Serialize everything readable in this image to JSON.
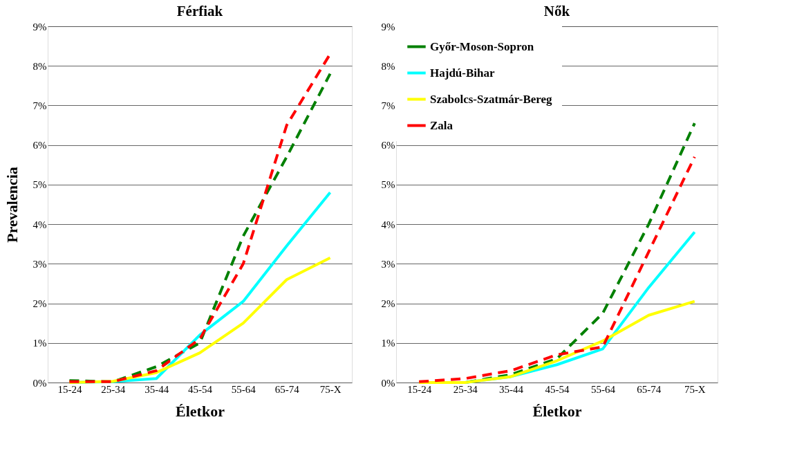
{
  "chart_data": [
    {
      "type": "line",
      "title": "Férfiak",
      "xlabel": "Életkor",
      "ylabel": "Prevalencia",
      "categories": [
        "15-24",
        "25-34",
        "35-44",
        "45-54",
        "55-64",
        "65-74",
        "75-X"
      ],
      "series": [
        {
          "color": "#008000",
          "line_style": "dashed",
          "values": [
            0.05,
            0.02,
            0.4,
            1.0,
            3.7,
            5.7,
            7.8
          ]
        },
        {
          "color": "#00ffff",
          "line_style": "solid",
          "values": [
            0.0,
            0.02,
            0.1,
            1.2,
            2.05,
            3.45,
            4.8
          ]
        },
        {
          "color": "#ffff00",
          "line_style": "solid",
          "values": [
            0.0,
            0.03,
            0.25,
            0.75,
            1.5,
            2.6,
            3.15
          ]
        },
        {
          "color": "#ff0000",
          "line_style": "dashed",
          "values": [
            0.02,
            0.02,
            0.3,
            1.1,
            3.0,
            6.5,
            8.3
          ]
        }
      ],
      "ylim": [
        0,
        9
      ],
      "yticks": [
        {
          "value": 0,
          "label": "0%"
        },
        {
          "value": 1,
          "label": "1%"
        },
        {
          "value": 2,
          "label": "2%"
        },
        {
          "value": 3,
          "label": "3%"
        },
        {
          "value": 4,
          "label": "4%"
        },
        {
          "value": 5,
          "label": "5%"
        },
        {
          "value": 6,
          "label": "6%"
        },
        {
          "value": 7,
          "label": "7%"
        },
        {
          "value": 8,
          "label": "8%"
        },
        {
          "value": 9,
          "label": "9%"
        }
      ],
      "grid": "y",
      "legend": false
    },
    {
      "type": "line",
      "title": "Nők",
      "xlabel": "Életkor",
      "categories": [
        "15-24",
        "25-34",
        "35-44",
        "45-54",
        "55-64",
        "65-74",
        "75-X"
      ],
      "series": [
        {
          "name": "Győr-Moson-Sopron",
          "color": "#008000",
          "line_style": "dashed",
          "values": [
            0.0,
            0.0,
            0.2,
            0.6,
            1.75,
            4.0,
            6.55
          ]
        },
        {
          "name": "Hajdú-Bihar",
          "color": "#00ffff",
          "line_style": "solid",
          "values": [
            0.0,
            0.0,
            0.15,
            0.45,
            0.85,
            2.4,
            3.8
          ]
        },
        {
          "name": "Szabolcs-Szatmár-Bereg",
          "color": "#ffff00",
          "line_style": "solid",
          "values": [
            0.0,
            0.0,
            0.15,
            0.55,
            1.05,
            1.7,
            2.05
          ]
        },
        {
          "name": "Zala",
          "color": "#ff0000",
          "line_style": "dashed",
          "values": [
            0.02,
            0.1,
            0.3,
            0.7,
            0.9,
            3.3,
            5.7
          ]
        }
      ],
      "ylim": [
        0,
        9
      ],
      "yticks": [
        {
          "value": 0,
          "label": "0%"
        },
        {
          "value": 1,
          "label": "1%"
        },
        {
          "value": 2,
          "label": "2%"
        },
        {
          "value": 3,
          "label": "3%"
        },
        {
          "value": 4,
          "label": "4%"
        },
        {
          "value": 5,
          "label": "5%"
        },
        {
          "value": 6,
          "label": "6%"
        },
        {
          "value": 7,
          "label": "7%"
        },
        {
          "value": 8,
          "label": "8%"
        },
        {
          "value": 9,
          "label": "9%"
        }
      ],
      "grid": "y",
      "legend": "top left"
    }
  ]
}
